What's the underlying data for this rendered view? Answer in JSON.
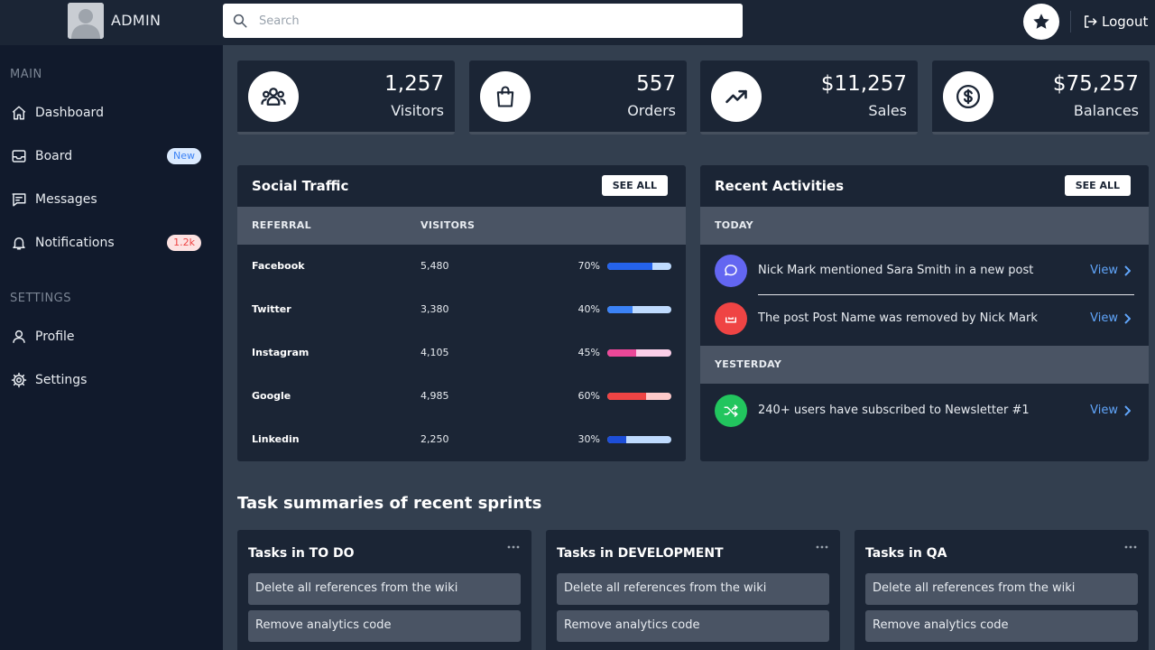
{
  "header": {
    "brand": "ADMIN",
    "search_placeholder": "Search",
    "logout_label": "Logout"
  },
  "sidebar": {
    "sections": [
      {
        "title": "MAIN",
        "items": [
          {
            "label": "Dashboard",
            "icon": "home-icon"
          },
          {
            "label": "Board",
            "icon": "inbox-icon",
            "badge": "New"
          },
          {
            "label": "Messages",
            "icon": "chat-icon"
          },
          {
            "label": "Notifications",
            "icon": "bell-icon",
            "badge": "1.2k"
          }
        ]
      },
      {
        "title": "SETTINGS",
        "items": [
          {
            "label": "Profile",
            "icon": "user-icon"
          },
          {
            "label": "Settings",
            "icon": "gear-icon"
          }
        ]
      }
    ]
  },
  "stats": [
    {
      "value": "1,257",
      "label": "Visitors",
      "icon": "people-icon"
    },
    {
      "value": "557",
      "label": "Orders",
      "icon": "shopping-bag-icon"
    },
    {
      "value": "$11,257",
      "label": "Sales",
      "icon": "trending-up-icon"
    },
    {
      "value": "$75,257",
      "label": "Balances",
      "icon": "dollar-icon"
    }
  ],
  "social_traffic": {
    "title": "Social Traffic",
    "see_all": "SEE ALL",
    "columns": [
      "REFERRAL",
      "VISITORS"
    ],
    "rows": [
      {
        "referral": "Facebook",
        "visitors": "5,480",
        "percent": "70%",
        "fraction": 0.7,
        "color": "#2563eb",
        "track": "#bfdbfe"
      },
      {
        "referral": "Twitter",
        "visitors": "3,380",
        "percent": "40%",
        "fraction": 0.4,
        "color": "#3b82f6",
        "track": "#bfdbfe"
      },
      {
        "referral": "Instagram",
        "visitors": "4,105",
        "percent": "45%",
        "fraction": 0.45,
        "color": "#ec4899",
        "track": "#fbcfe8"
      },
      {
        "referral": "Google",
        "visitors": "4,985",
        "percent": "60%",
        "fraction": 0.6,
        "color": "#ef4444",
        "track": "#fecaca"
      },
      {
        "referral": "Linkedin",
        "visitors": "2,250",
        "percent": "30%",
        "fraction": 0.3,
        "color": "#1d4ed8",
        "track": "#bfdbfe"
      }
    ]
  },
  "recent_activities": {
    "title": "Recent Activities",
    "see_all": "SEE ALL",
    "groups": [
      {
        "label": "TODAY",
        "items": [
          {
            "text": "Nick Mark mentioned Sara Smith in a new post",
            "action": "View",
            "icon": "message-circle-icon",
            "color": "#6366f1"
          },
          {
            "text": "The post Post Name was removed by Nick Mark",
            "action": "View",
            "icon": "trash-icon",
            "color": "#ef4444"
          }
        ]
      },
      {
        "label": "YESTERDAY",
        "items": [
          {
            "text": "240+ users have subscribed to Newsletter #1",
            "action": "View",
            "icon": "shuffle-icon",
            "color": "#22c55e"
          }
        ]
      }
    ]
  },
  "sprints": {
    "title": "Task summaries of recent sprints",
    "columns": [
      {
        "title": "Tasks in TO DO",
        "tasks": [
          "Delete all references from the wiki",
          "Remove analytics code"
        ]
      },
      {
        "title": "Tasks in DEVELOPMENT",
        "tasks": [
          "Delete all references from the wiki",
          "Remove analytics code"
        ]
      },
      {
        "title": "Tasks in QA",
        "tasks": [
          "Delete all references from the wiki",
          "Remove analytics code"
        ]
      }
    ]
  }
}
